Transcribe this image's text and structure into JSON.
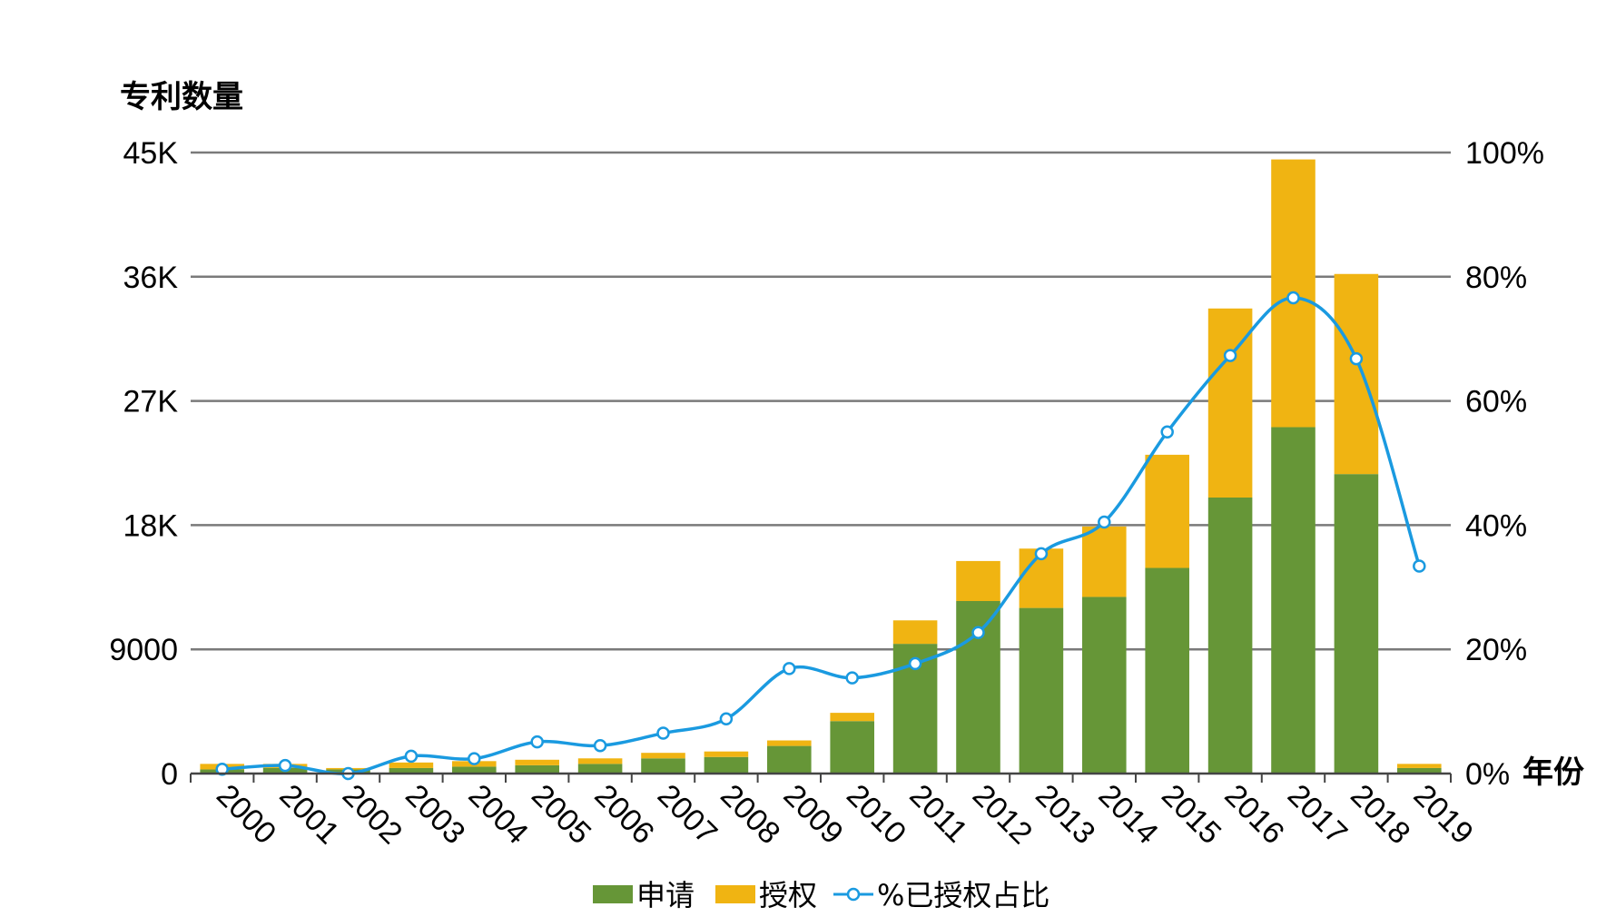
{
  "chart_data": {
    "type": "bar",
    "stacked": true,
    "y_title": "专利数量",
    "x_title": "年份",
    "categories": [
      "2000",
      "2001",
      "2002",
      "2003",
      "2004",
      "2005",
      "2006",
      "2007",
      "2008",
      "2009",
      "2010",
      "2011",
      "2012",
      "2013",
      "2014",
      "2015",
      "2016",
      "2017",
      "2018",
      "2019"
    ],
    "series": [
      {
        "name": "申请",
        "color": "#669637",
        "axis": "left",
        "values": [
          300,
          400,
          300,
          400,
          500,
          600,
          700,
          1100,
          1200,
          2000,
          3800,
          9400,
          12500,
          12000,
          12800,
          14900,
          20000,
          25100,
          21700,
          400
        ]
      },
      {
        "name": "授权",
        "color": "#f0b412",
        "axis": "left",
        "values": [
          400,
          300,
          100,
          400,
          400,
          400,
          400,
          400,
          400,
          400,
          600,
          1700,
          2900,
          4300,
          5100,
          8200,
          13700,
          19400,
          14500,
          300
        ]
      },
      {
        "name": "%已授权占比",
        "color": "#1a9ae0",
        "type": "line",
        "axis": "right",
        "values": [
          0.7,
          1.3,
          0.0,
          2.8,
          2.4,
          5.1,
          4.5,
          6.5,
          8.8,
          16.9,
          15.4,
          17.7,
          22.7,
          35.4,
          40.5,
          55.0,
          67.3,
          76.6,
          66.8,
          33.4
        ]
      }
    ],
    "y_left": {
      "min": 0,
      "max": 45000,
      "ticks": [
        0,
        9000,
        18000,
        27000,
        36000,
        45000
      ],
      "tick_labels": [
        "0",
        "9000",
        "18K",
        "27K",
        "36K",
        "45K"
      ]
    },
    "y_right": {
      "min": 0,
      "max": 100,
      "ticks": [
        0,
        20,
        40,
        60,
        80,
        100
      ],
      "tick_labels": [
        "0%",
        "20%",
        "40%",
        "60%",
        "80%",
        "100%"
      ]
    },
    "grid": true,
    "legend_position": "bottom"
  }
}
